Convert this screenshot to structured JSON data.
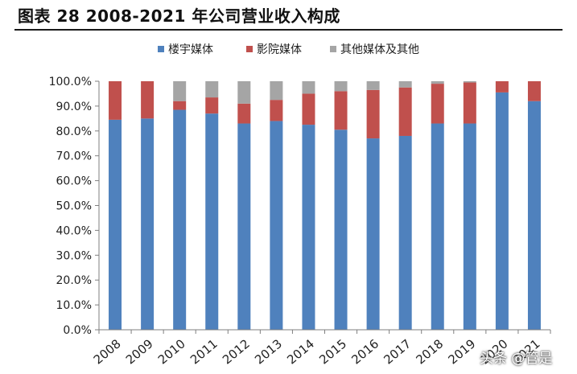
{
  "chart_data": {
    "type": "bar",
    "stacked": true,
    "title": "图表 28 2008-2021 年公司营业收入构成",
    "categories": [
      "2008",
      "2009",
      "2010",
      "2011",
      "2012",
      "2013",
      "2014",
      "2015",
      "2016",
      "2017",
      "2018",
      "2019",
      "2020",
      "2021"
    ],
    "series": [
      {
        "name": "楼宇媒体",
        "color": "#4F81BD",
        "values": [
          84.5,
          85.0,
          88.5,
          87.0,
          83.0,
          84.0,
          82.5,
          80.5,
          77.0,
          78.0,
          83.0,
          83.0,
          95.5,
          92.0
        ]
      },
      {
        "name": "影院媒体",
        "color": "#C0504D",
        "values": [
          15.5,
          15.0,
          3.5,
          6.5,
          8.0,
          8.5,
          12.5,
          15.5,
          19.5,
          19.5,
          16.0,
          16.5,
          4.5,
          8.0
        ]
      },
      {
        "name": "其他媒体及其他",
        "color": "#A5A5A5",
        "values": [
          0.0,
          0.0,
          8.0,
          6.5,
          9.0,
          7.5,
          5.0,
          4.0,
          3.5,
          2.5,
          1.0,
          0.5,
          0.0,
          0.0
        ]
      }
    ],
    "yticks": [
      "0.0%",
      "10.0%",
      "20.0%",
      "30.0%",
      "40.0%",
      "50.0%",
      "60.0%",
      "70.0%",
      "80.0%",
      "90.0%",
      "100.0%"
    ],
    "ylim": [
      0,
      100
    ],
    "xlabel": "",
    "ylabel": "",
    "legend_position": "top"
  },
  "watermark": "头条 @管是"
}
